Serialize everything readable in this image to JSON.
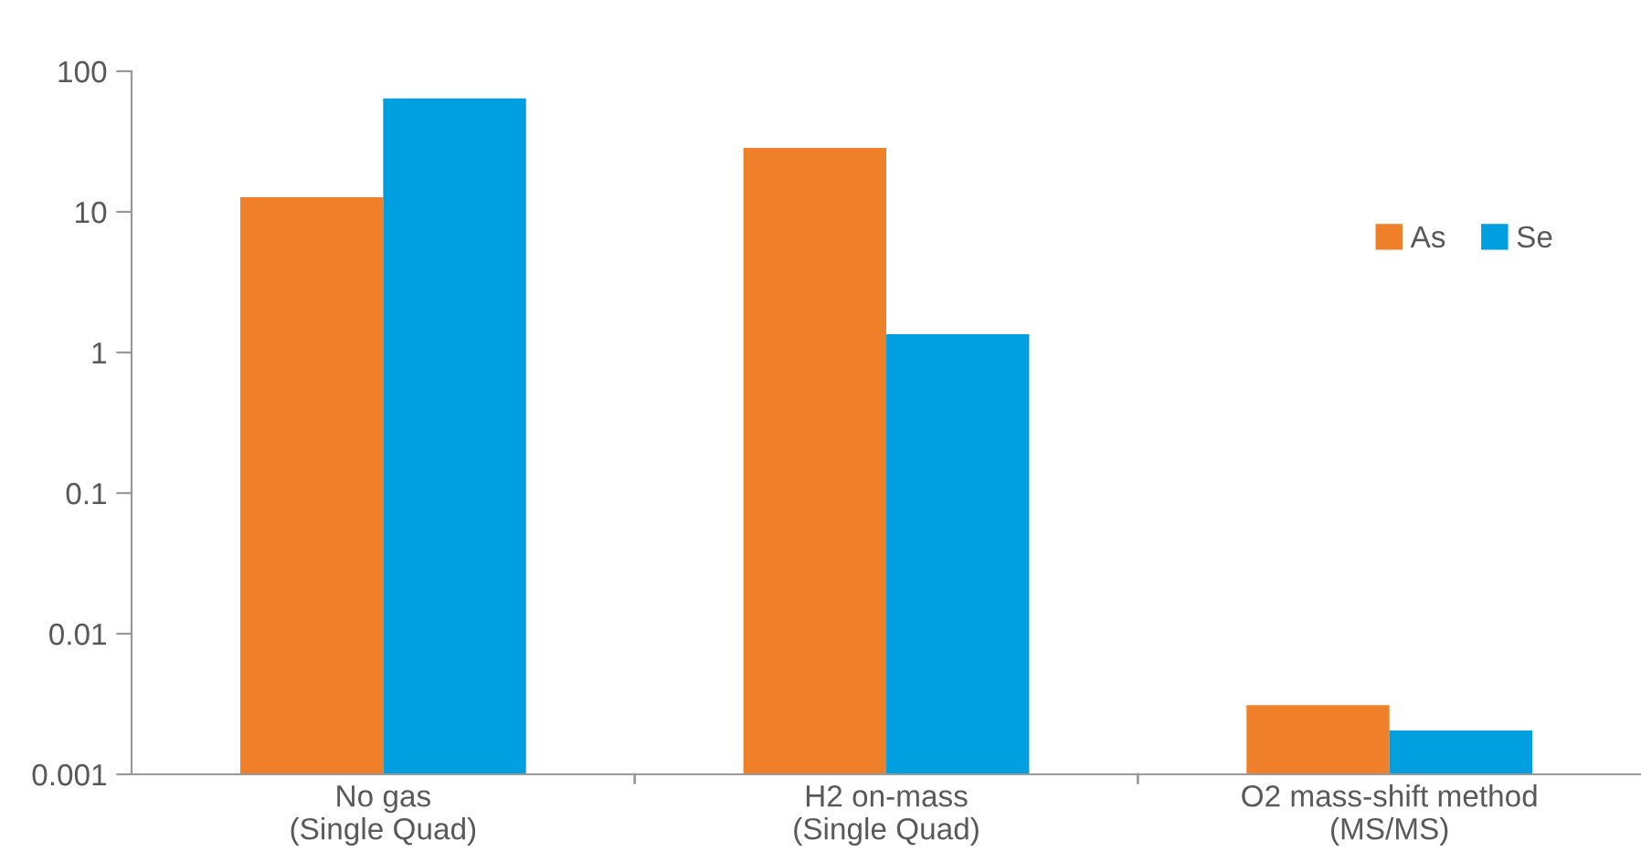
{
  "chart_data": {
    "type": "bar",
    "categories": [
      "No gas\n(Single Quad)",
      "H2 on-mass\n(Single Quad)",
      "O2 mass-shift method\n(MS/MS)"
    ],
    "series": [
      {
        "name": "As",
        "color": "#f07f2a",
        "values": [
          12.7,
          28.5,
          0.0031
        ]
      },
      {
        "name": "Se",
        "color": "#00a0e0",
        "values": [
          64,
          1.35,
          0.00205
        ]
      }
    ],
    "log": "y",
    "ylim": [
      0.001,
      100
    ],
    "yticks": [
      0.001,
      0.01,
      0.1,
      1,
      10,
      100
    ],
    "grid": false,
    "legend": "top right"
  }
}
